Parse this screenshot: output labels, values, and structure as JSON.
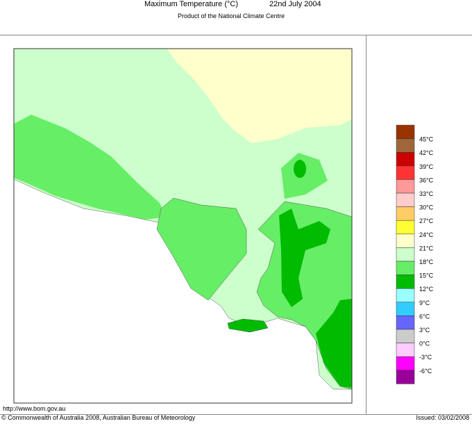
{
  "header": {
    "title": "Maximum Temperature (°C)",
    "date": "22nd July 2004",
    "subtitle": "Product of the National Climate Centre"
  },
  "legend": {
    "colors": [
      "#993300",
      "#a0663a",
      "#cc0000",
      "#ff3333",
      "#ff9999",
      "#ffcccc",
      "#ffcc66",
      "#ffff33",
      "#ffffcc",
      "#ccffcc",
      "#66ee66",
      "#00bb00",
      "#99ffff",
      "#33ccff",
      "#6666ff",
      "#cccccc",
      "#ffccff",
      "#ff00ff",
      "#990099"
    ],
    "labels": [
      "45°C",
      "42°C",
      "39°C",
      "36°C",
      "33°C",
      "30°C",
      "27°C",
      "24°C",
      "21°C",
      "18°C",
      "15°C",
      "12°C",
      "9°C",
      "6°C",
      "3°C",
      "0°C",
      "-3°C",
      "-6°C"
    ]
  },
  "footer": {
    "url": "http://www.bom.gov.au",
    "copyright": "© Commonwealth of Australia 2008, Australian Bureau of Meteorology",
    "issued": "Issued: 03/02/2008"
  }
}
